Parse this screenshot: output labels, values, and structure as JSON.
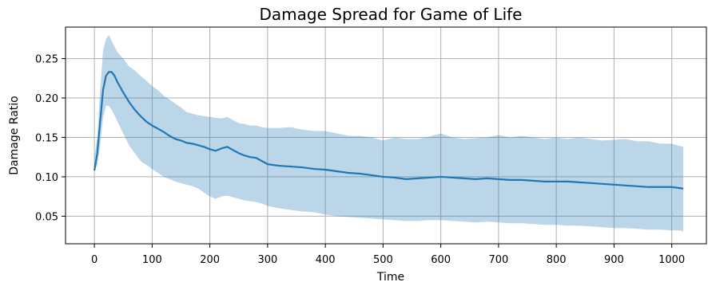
{
  "chart_data": {
    "type": "line",
    "title": "Damage Spread for Game of Life",
    "xlabel": "Time",
    "ylabel": "Damage Ratio",
    "xlim": [
      -50,
      1060
    ],
    "ylim": [
      0.015,
      0.29
    ],
    "xticks": [
      0,
      100,
      200,
      300,
      400,
      500,
      600,
      700,
      800,
      900,
      1000
    ],
    "yticks": [
      0.05,
      0.1,
      0.15,
      0.2,
      0.25
    ],
    "ytick_labels": [
      "0.05",
      "0.10",
      "0.15",
      "0.20",
      "0.25"
    ],
    "grid": true,
    "colors": {
      "line": "#1f77b4",
      "band": "#1f77b4",
      "band_opacity": 0.3
    },
    "series": [
      {
        "x": [
          0,
          5,
          10,
          15,
          20,
          25,
          30,
          35,
          40,
          50,
          60,
          70,
          80,
          90,
          100,
          110,
          120,
          130,
          140,
          150,
          160,
          170,
          180,
          190,
          200,
          210,
          220,
          230,
          240,
          250,
          260,
          270,
          280,
          290,
          300,
          320,
          340,
          360,
          380,
          400,
          420,
          440,
          460,
          480,
          500,
          520,
          540,
          560,
          580,
          600,
          620,
          640,
          660,
          680,
          700,
          720,
          740,
          760,
          780,
          800,
          820,
          840,
          860,
          880,
          900,
          920,
          940,
          960,
          980,
          1000,
          1010,
          1020
        ],
        "values": [
          0.108,
          0.13,
          0.17,
          0.21,
          0.228,
          0.233,
          0.233,
          0.228,
          0.22,
          0.207,
          0.195,
          0.185,
          0.177,
          0.17,
          0.165,
          0.161,
          0.157,
          0.152,
          0.148,
          0.146,
          0.143,
          0.142,
          0.14,
          0.138,
          0.135,
          0.133,
          0.136,
          0.138,
          0.134,
          0.13,
          0.127,
          0.125,
          0.124,
          0.12,
          0.116,
          0.114,
          0.113,
          0.112,
          0.11,
          0.109,
          0.107,
          0.105,
          0.104,
          0.102,
          0.1,
          0.099,
          0.097,
          0.098,
          0.099,
          0.1,
          0.099,
          0.098,
          0.097,
          0.098,
          0.097,
          0.096,
          0.096,
          0.095,
          0.094,
          0.094,
          0.094,
          0.093,
          0.092,
          0.091,
          0.09,
          0.089,
          0.088,
          0.087,
          0.087,
          0.087,
          0.086,
          0.085
        ],
        "lower": [
          0.108,
          0.115,
          0.14,
          0.175,
          0.19,
          0.19,
          0.185,
          0.178,
          0.17,
          0.155,
          0.14,
          0.13,
          0.12,
          0.115,
          0.11,
          0.105,
          0.1,
          0.097,
          0.094,
          0.092,
          0.09,
          0.088,
          0.085,
          0.08,
          0.075,
          0.072,
          0.075,
          0.076,
          0.074,
          0.072,
          0.07,
          0.069,
          0.068,
          0.066,
          0.063,
          0.06,
          0.058,
          0.056,
          0.055,
          0.052,
          0.05,
          0.049,
          0.048,
          0.047,
          0.046,
          0.045,
          0.044,
          0.044,
          0.045,
          0.045,
          0.044,
          0.043,
          0.042,
          0.043,
          0.042,
          0.041,
          0.041,
          0.04,
          0.039,
          0.039,
          0.038,
          0.038,
          0.037,
          0.036,
          0.035,
          0.035,
          0.034,
          0.033,
          0.033,
          0.032,
          0.032,
          0.031
        ],
        "upper": [
          0.125,
          0.15,
          0.21,
          0.26,
          0.275,
          0.28,
          0.272,
          0.265,
          0.258,
          0.25,
          0.24,
          0.235,
          0.228,
          0.222,
          0.215,
          0.21,
          0.203,
          0.198,
          0.193,
          0.188,
          0.182,
          0.18,
          0.178,
          0.177,
          0.176,
          0.175,
          0.174,
          0.176,
          0.172,
          0.168,
          0.167,
          0.165,
          0.165,
          0.163,
          0.162,
          0.162,
          0.163,
          0.16,
          0.158,
          0.158,
          0.155,
          0.152,
          0.152,
          0.15,
          0.146,
          0.15,
          0.148,
          0.148,
          0.151,
          0.155,
          0.15,
          0.148,
          0.149,
          0.15,
          0.153,
          0.15,
          0.152,
          0.15,
          0.148,
          0.15,
          0.148,
          0.15,
          0.148,
          0.146,
          0.147,
          0.148,
          0.145,
          0.145,
          0.142,
          0.142,
          0.14,
          0.138
        ]
      }
    ]
  }
}
